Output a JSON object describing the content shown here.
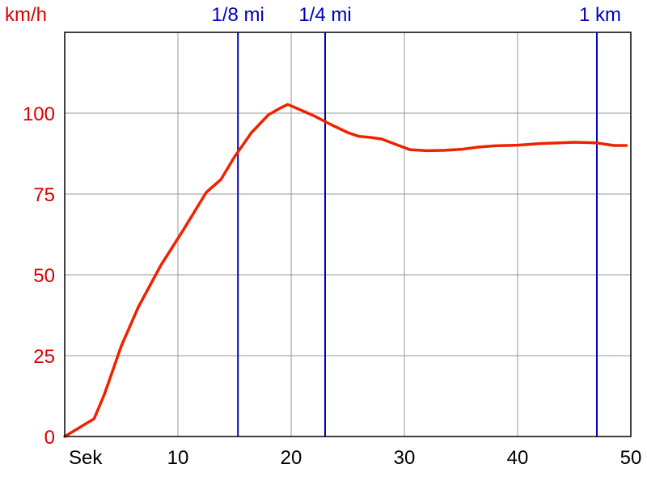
{
  "chart_data": {
    "type": "line",
    "title": "",
    "xlabel": "Sek",
    "ylabel": "km/h",
    "xlim": [
      0,
      50
    ],
    "ylim": [
      0,
      125
    ],
    "grid": true,
    "x_ticks": [
      10,
      20,
      30,
      40,
      50
    ],
    "y_ticks": [
      0,
      25,
      50,
      75,
      100
    ],
    "colors": {
      "series": "#ee2200",
      "y_axis_text": "#dd0000",
      "markers": "#0000bb",
      "grid": "#999999",
      "axis": "#000000"
    },
    "series": [
      {
        "name": "",
        "x": [
          0,
          2.6,
          3.5,
          5,
          6.5,
          8.5,
          10.5,
          12.5,
          13.8,
          15,
          16.5,
          18,
          19,
          19.7,
          20.5,
          22,
          23.5,
          25,
          26,
          27,
          28,
          29.5,
          30.5,
          32,
          33.5,
          35,
          36.5,
          38,
          40,
          42,
          45,
          47,
          48.5,
          49.6
        ],
        "y": [
          0,
          5.5,
          13,
          28,
          40,
          53,
          64,
          75.5,
          79.5,
          86.5,
          94,
          99.5,
          101.5,
          102.7,
          101.5,
          99.2,
          96.5,
          94,
          92.8,
          92.5,
          92,
          90,
          88.7,
          88.4,
          88.5,
          88.8,
          89.5,
          89.9,
          90.1,
          90.6,
          91,
          90.8,
          90,
          90
        ]
      }
    ],
    "markers": [
      {
        "label": "1/8 mi",
        "x": 15.3
      },
      {
        "label": "1/4 mi",
        "x": 23
      },
      {
        "label": "1 km",
        "x": 47
      }
    ]
  }
}
